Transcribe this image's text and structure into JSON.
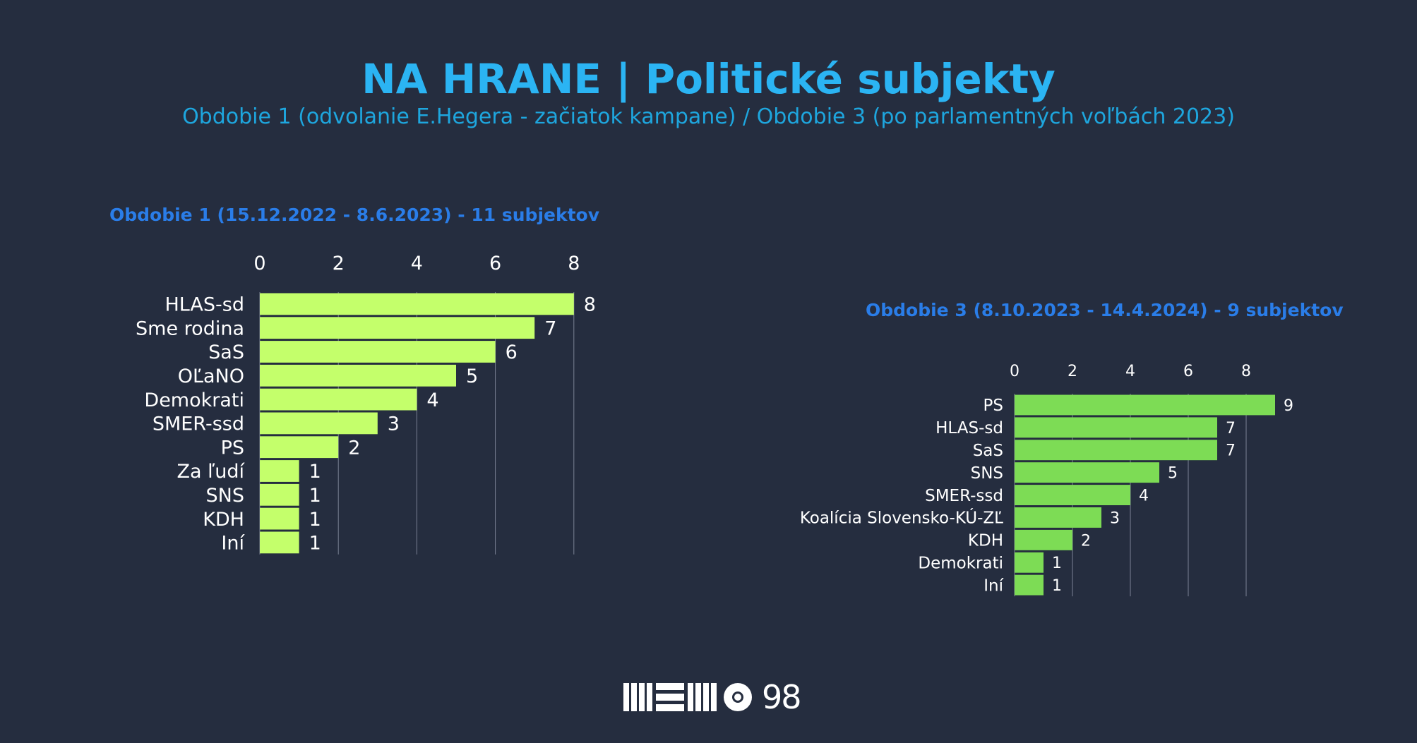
{
  "header": {
    "title": "NA HRANE | Politické subjekty",
    "subtitle": "Obdobie 1 (odvolanie E.Hegera - začiatok kampane) / Obdobie 3 (po parlamentných voľbách 2023)"
  },
  "colors": {
    "background": "#252d3f",
    "title": "#2bb4f3",
    "chart_title": "#2a7de8",
    "bar_period1": "#c4ff6b",
    "bar_period3": "#7ddc55",
    "text": "#ffffff",
    "gridline": "#7a8194"
  },
  "chart_data": [
    {
      "type": "bar",
      "orientation": "horizontal",
      "title": "Obdobie 1 (15.12.2022 - 8.6.2023) - 11 subjektov",
      "categories": [
        "HLAS-sd",
        "Sme rodina",
        "SaS",
        "OĽaNO",
        "Demokrati",
        "SMER-ssd",
        "PS",
        "Za ľudí",
        "SNS",
        "KDH",
        "Iní"
      ],
      "values": [
        8,
        7,
        6,
        5,
        4,
        3,
        2,
        1,
        1,
        1,
        1
      ],
      "xlim": [
        0,
        8
      ],
      "xticks": [
        0,
        2,
        4,
        6,
        8
      ],
      "axis_position": "top",
      "grid": true,
      "data_labels": true
    },
    {
      "type": "bar",
      "orientation": "horizontal",
      "title": "Obdobie 3 (8.10.2023 - 14.4.2024) - 9 subjektov",
      "categories": [
        "PS",
        "HLAS-sd",
        "SaS",
        "SNS",
        "SMER-ssd",
        "Koalícia Slovensko-KÚ-ZĽ",
        "KDH",
        "Demokrati",
        "Iní"
      ],
      "values": [
        9,
        7,
        7,
        5,
        4,
        3,
        2,
        1,
        1
      ],
      "xlim": [
        0,
        9
      ],
      "xticks": [
        0,
        2,
        4,
        6,
        8
      ],
      "axis_position": "top",
      "grid": true,
      "data_labels": true
    }
  ],
  "footer": {
    "logo_text": "98",
    "logo_icon": "memo98-logo-icon"
  }
}
